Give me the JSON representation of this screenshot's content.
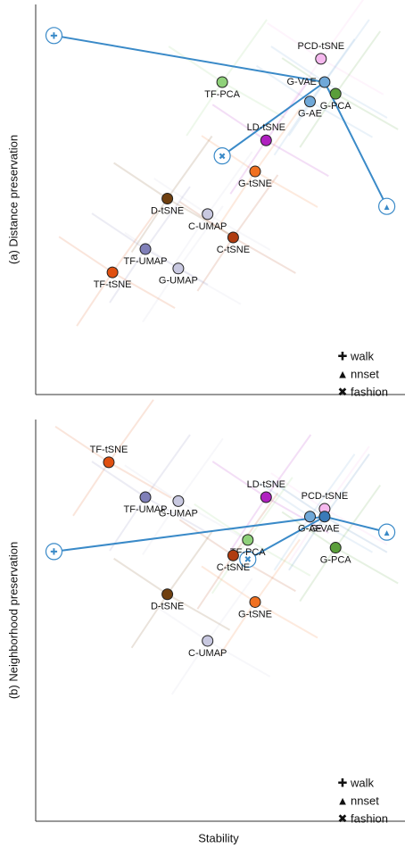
{
  "chart_data": [
    {
      "type": "scatter",
      "ylabel": "(a) Distance preservation",
      "labels": [
        "TF-PCA",
        "PCD-tSNE",
        "G-VAE",
        "G-PCA",
        "G-AE",
        "LD-tSNE",
        "G-tSNE",
        "D-tSNE",
        "C-UMAP",
        "C-tSNE",
        "TF-UMAP",
        "G-UMAP",
        "TF-tSNE"
      ],
      "x": [
        51,
        78,
        79,
        82,
        75,
        63,
        60,
        36,
        47,
        54,
        30,
        39,
        21
      ],
      "y": [
        80,
        86,
        80,
        77,
        75,
        65,
        57,
        50,
        46,
        40,
        37,
        32,
        31
      ],
      "colors": [
        "#8fd17a",
        "#f5b8ee",
        "#6fa8d8",
        "#5a9e3a",
        "#6fa8d8",
        "#b020c0",
        "#f07020",
        "#704010",
        "#c8c8e0",
        "#b03c10",
        "#7f7fb8",
        "#c8c8e0",
        "#e05010"
      ],
      "datasets": {
        "names": [
          "walk",
          "nnset",
          "fashion"
        ],
        "symbols": [
          "✚",
          "▲",
          "✖"
        ],
        "x": [
          5,
          96,
          51
        ],
        "y": [
          92,
          48,
          61
        ],
        "color": "#3a8ac8"
      },
      "xlim": [
        0,
        100
      ],
      "ylim": [
        0,
        100
      ]
    },
    {
      "type": "scatter",
      "ylabel": "(b) Neighborhood preservation",
      "xlabel": "Stability",
      "labels": [
        "TF-tSNE",
        "G-UMAP",
        "TF-UMAP",
        "LD-tSNE",
        "PCD-tSNE",
        "G-AE",
        "G-VAE",
        "TF-PCA",
        "C-tSNE",
        "G-PCA",
        "D-tSNE",
        "G-tSNE",
        "C-UMAP"
      ],
      "x": [
        20,
        39,
        30,
        63,
        79,
        75,
        79,
        58,
        54,
        82,
        36,
        60,
        47
      ],
      "y": [
        89,
        79,
        80,
        80,
        77,
        75,
        75,
        69,
        65,
        67,
        55,
        53,
        43
      ],
      "colors": [
        "#e05010",
        "#c8c8e0",
        "#7f7fb8",
        "#b020c0",
        "#f5b8ee",
        "#6fa8d8",
        "#3a7ab8",
        "#8fd17a",
        "#b03c10",
        "#5a9e3a",
        "#704010",
        "#f07020",
        "#c8c8e0"
      ],
      "datasets": {
        "names": [
          "walk",
          "nnset",
          "fashion"
        ],
        "symbols": [
          "✚",
          "▲",
          "✖"
        ],
        "x": [
          5,
          96,
          58
        ],
        "y": [
          66,
          71,
          64
        ],
        "color": "#3a8ac8"
      },
      "xlim": [
        0,
        100
      ],
      "ylim": [
        0,
        100
      ]
    }
  ]
}
